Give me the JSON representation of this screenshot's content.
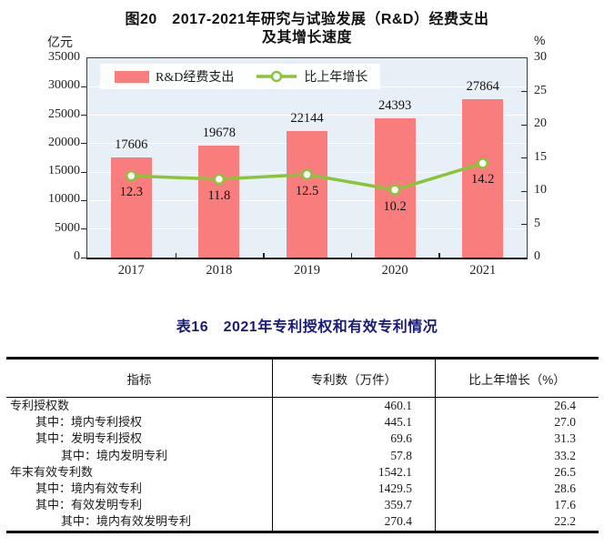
{
  "figure": {
    "title_line1": "图20　2017-2021年研究与试验发展（R&D）经费支出",
    "title_line2": "及其增长速度"
  },
  "chart_data": {
    "type": "bar+line",
    "title": "图20　2017-2021年研究与试验发展（R&D）经费支出及其增长速度",
    "categories": [
      "2017",
      "2018",
      "2019",
      "2020",
      "2021"
    ],
    "series": [
      {
        "name": "R&D经费支出",
        "type": "bar",
        "axis": "left",
        "unit": "亿元",
        "color": "#fa7d7d",
        "values": [
          17606,
          19678,
          22144,
          24393,
          27864
        ]
      },
      {
        "name": "比上年增长",
        "type": "line",
        "axis": "right",
        "unit": "%",
        "color": "#8cc33c",
        "marker_fill": "#ffffff",
        "values": [
          12.3,
          11.8,
          12.5,
          10.2,
          14.2
        ]
      }
    ],
    "left_axis": {
      "unit": "亿元",
      "min": 0,
      "max": 35000,
      "step": 5000
    },
    "right_axis": {
      "unit": "%",
      "min": 0,
      "max": 30,
      "step": 5
    },
    "grid": true,
    "plot_background": "#e8f0f7",
    "gridline_color": "#ffffff",
    "legend_position": "top-left-inside"
  },
  "table": {
    "title": "表16　2021年专利授权和有效专利情况",
    "columns": [
      "指标",
      "专利数（万件）",
      "比上年增长（%）"
    ],
    "rows": [
      {
        "indicator": "专利授权数",
        "indent": 0,
        "count": "460.1",
        "growth": "26.4"
      },
      {
        "indicator": "其中：境内专利授权",
        "indent": 1,
        "count": "445.1",
        "growth": "27.0"
      },
      {
        "indicator": "其中：发明专利授权",
        "indent": 1,
        "count": "69.6",
        "growth": "31.3"
      },
      {
        "indicator": "其中：境内发明专利",
        "indent": 2,
        "count": "57.8",
        "growth": "33.2"
      },
      {
        "indicator": "年末有效专利数",
        "indent": 0,
        "count": "1542.1",
        "growth": "26.5"
      },
      {
        "indicator": "其中：境内有效专利",
        "indent": 1,
        "count": "1429.5",
        "growth": "28.6"
      },
      {
        "indicator": "其中：有效发明专利",
        "indent": 1,
        "count": "359.7",
        "growth": "17.6"
      },
      {
        "indicator": "其中：境内有效发明专利",
        "indent": 2,
        "count": "270.4",
        "growth": "22.2"
      }
    ]
  }
}
